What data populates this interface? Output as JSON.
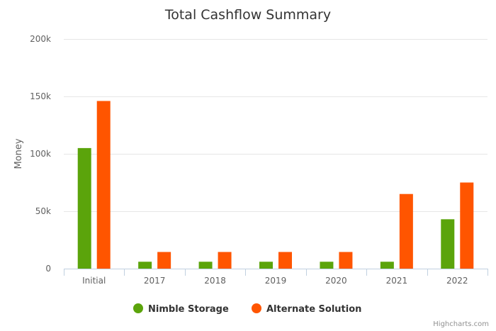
{
  "chart_data": {
    "type": "bar",
    "title": "Total Cashflow Summary",
    "ylabel": "Money",
    "xlabel": "",
    "categories": [
      "Initial",
      "2017",
      "2018",
      "2019",
      "2020",
      "2021",
      "2022"
    ],
    "ylim": [
      0,
      200000
    ],
    "yticks": [
      0,
      50000,
      100000,
      150000,
      200000
    ],
    "ytick_labels": [
      "0",
      "50k",
      "100k",
      "150k",
      "200k"
    ],
    "grid": true,
    "legend_position": "bottom-center",
    "series": [
      {
        "name": "Nimble Storage",
        "color": "#5ba40b",
        "values": [
          105000,
          6000,
          6000,
          6000,
          6000,
          6000,
          43000
        ]
      },
      {
        "name": "Alternate Solution",
        "color": "#ff5500",
        "values": [
          146000,
          14500,
          14500,
          14500,
          14500,
          65000,
          75000
        ]
      }
    ]
  },
  "credits": "Highcharts.com"
}
